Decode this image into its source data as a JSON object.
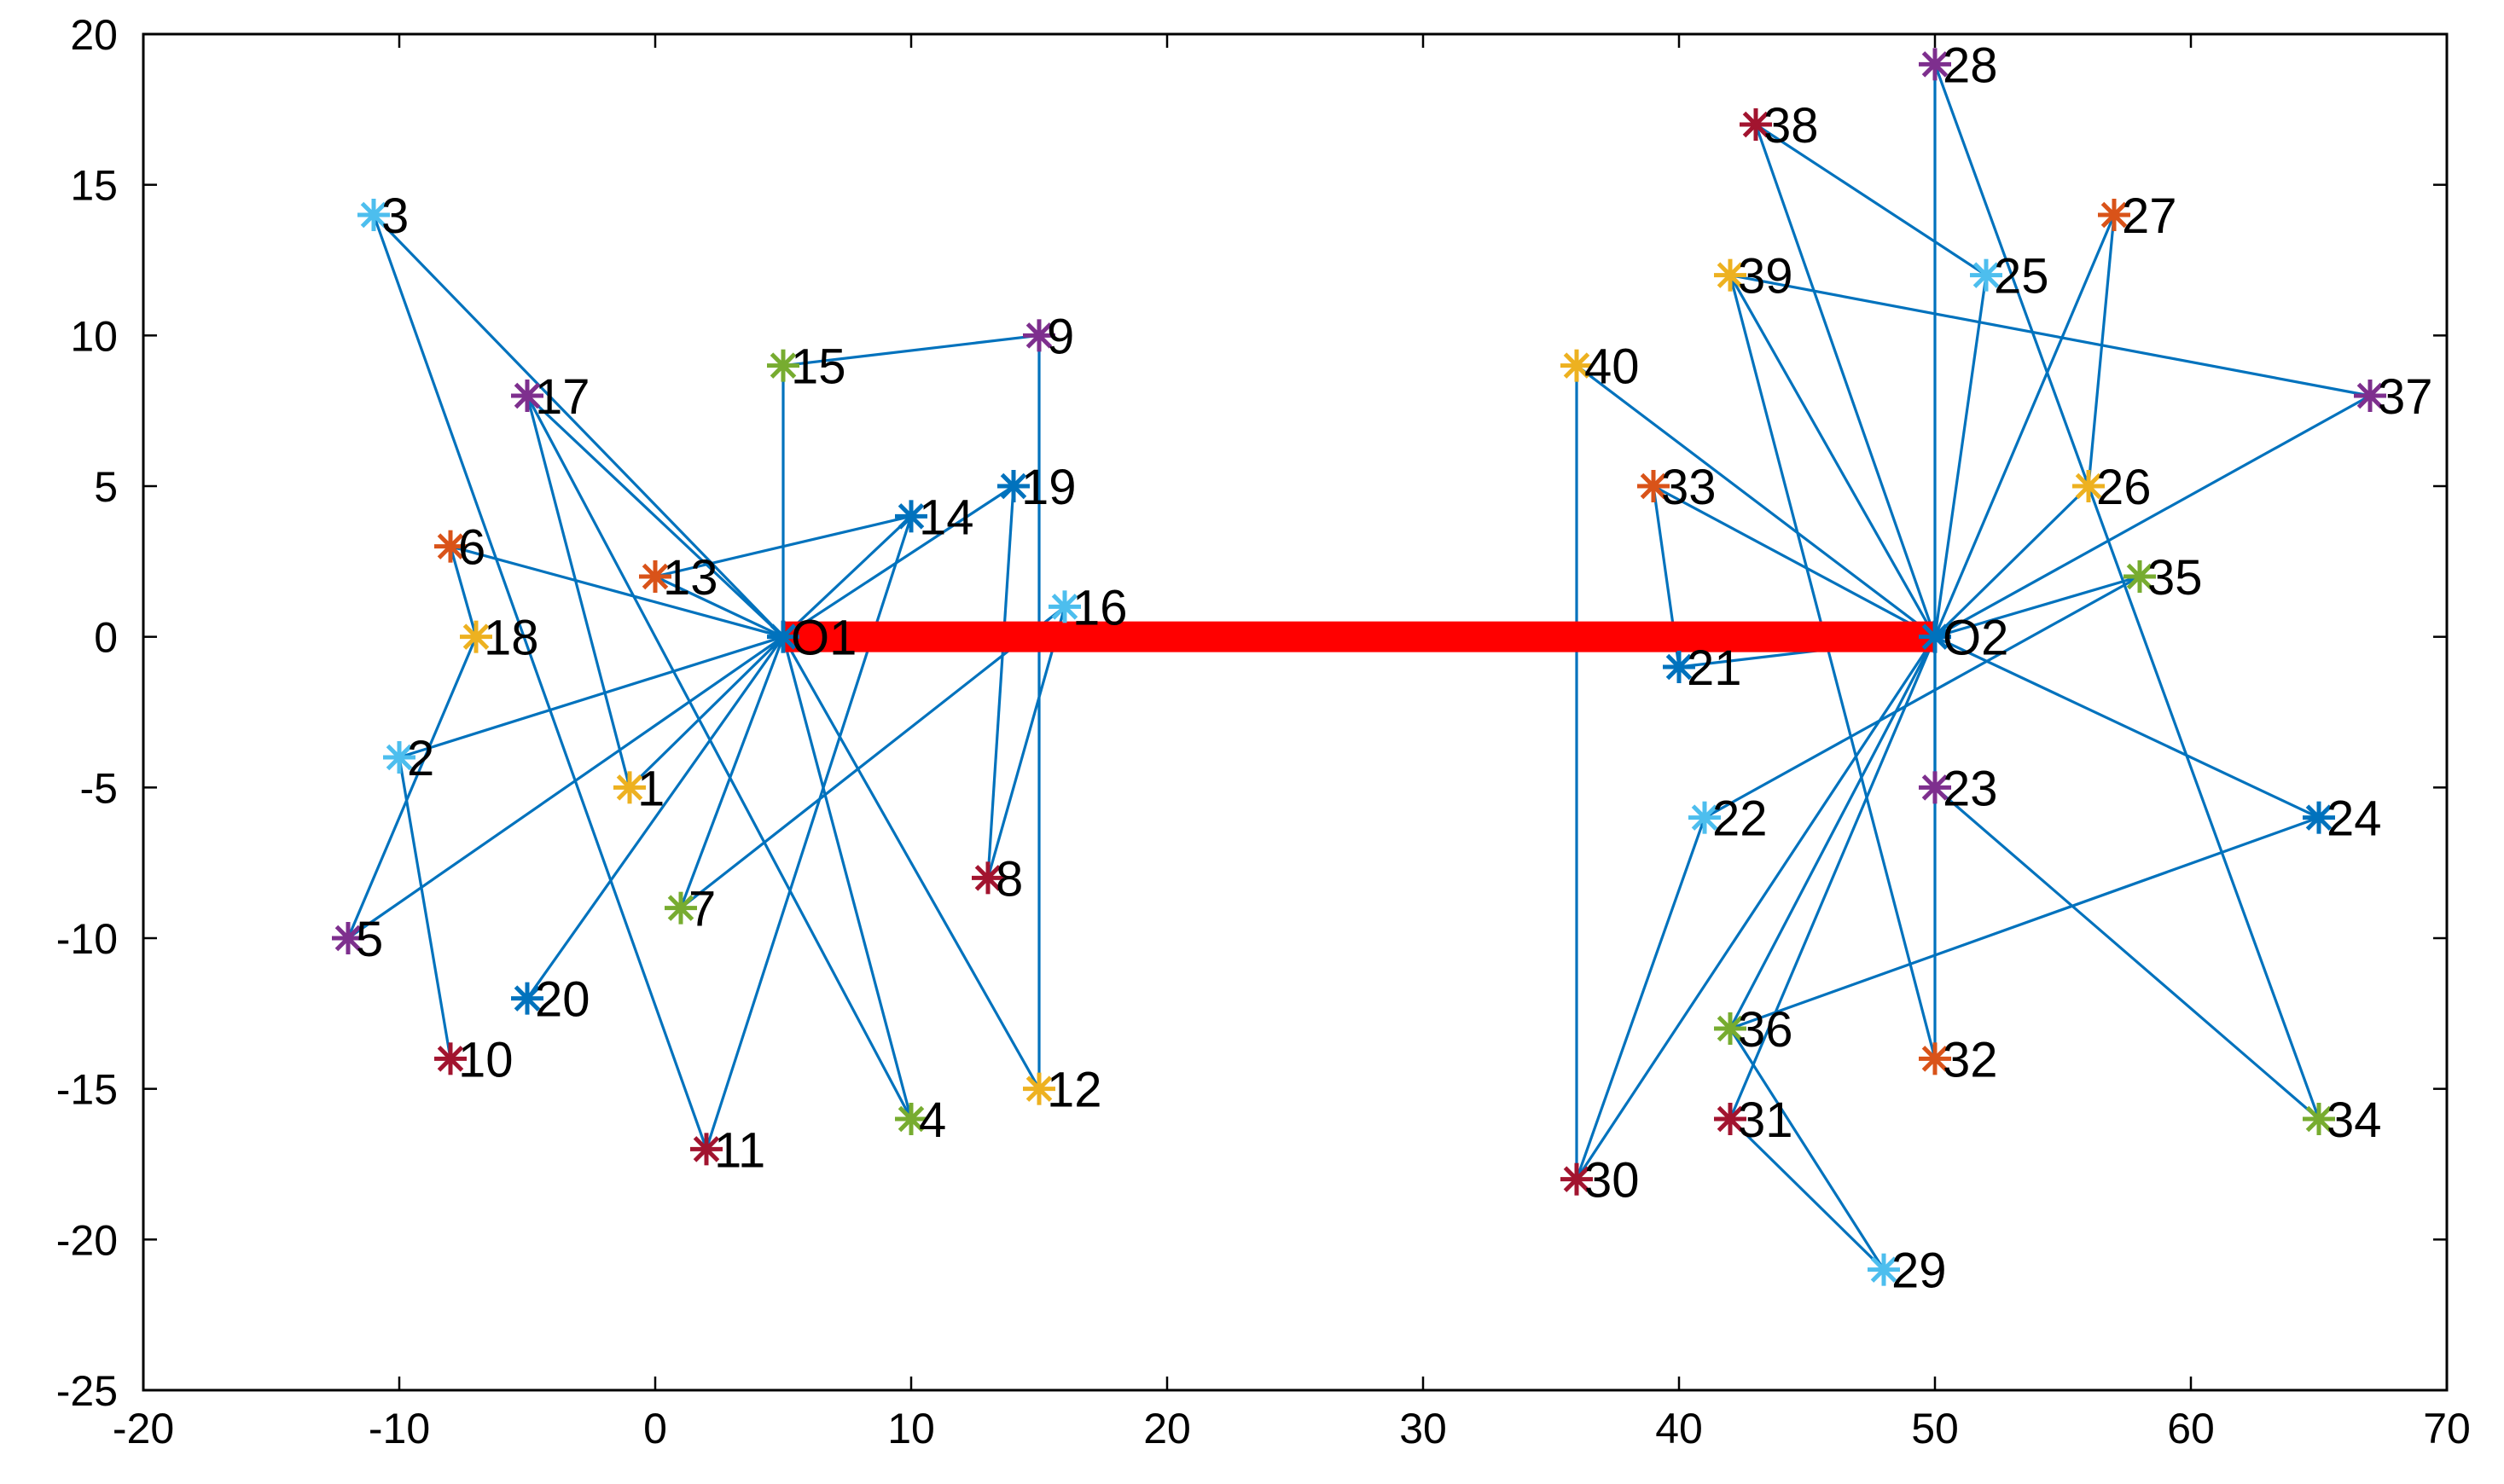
{
  "chart_data": {
    "type": "scatter",
    "title": "",
    "xlabel": "",
    "ylabel": "",
    "xlim": [
      -20,
      70
    ],
    "ylim": [
      -25,
      20
    ],
    "xticks": [
      -20,
      -10,
      0,
      10,
      20,
      30,
      40,
      50,
      60,
      70
    ],
    "yticks": [
      -25,
      -20,
      -15,
      -10,
      -5,
      0,
      5,
      10,
      15,
      20
    ],
    "xtick_labels": [
      "-20",
      "-10",
      "0",
      "10",
      "20",
      "30",
      "40",
      "50",
      "60",
      "70"
    ],
    "ytick_labels": [
      "-25",
      "-20",
      "-15",
      "-10",
      "-5",
      "0",
      "5",
      "10",
      "15",
      "20"
    ],
    "grid": false,
    "link_color": "#0072BD",
    "depot_link_color": "#FF0000",
    "depots": [
      {
        "id": "O1",
        "label": "O1",
        "x": 5,
        "y": 0
      },
      {
        "id": "O2",
        "label": "O2",
        "x": 50,
        "y": 0
      }
    ],
    "depot_link": [
      "O1",
      "O2"
    ],
    "points": [
      {
        "id": "1",
        "label": "1",
        "x": -1,
        "y": -5,
        "color": "#EDB120"
      },
      {
        "id": "2",
        "label": "2",
        "x": -10,
        "y": -4,
        "color": "#4DBEEE"
      },
      {
        "id": "3",
        "label": "3",
        "x": -11,
        "y": 14,
        "color": "#4DBEEE"
      },
      {
        "id": "4",
        "label": "4",
        "x": 10,
        "y": -16,
        "color": "#77AC30"
      },
      {
        "id": "5",
        "label": "5",
        "x": -12,
        "y": -10,
        "color": "#7E2F8E"
      },
      {
        "id": "6",
        "label": "6",
        "x": -8,
        "y": 3,
        "color": "#D95319"
      },
      {
        "id": "7",
        "label": "7",
        "x": 1,
        "y": -9,
        "color": "#77AC30"
      },
      {
        "id": "8",
        "label": "8",
        "x": 13,
        "y": -8,
        "color": "#A2142F"
      },
      {
        "id": "9",
        "label": "9",
        "x": 15,
        "y": 10,
        "color": "#7E2F8E"
      },
      {
        "id": "10",
        "label": "10",
        "x": -8,
        "y": -14,
        "color": "#A2142F"
      },
      {
        "id": "11",
        "label": "11",
        "x": 2,
        "y": -17,
        "color": "#A2142F"
      },
      {
        "id": "12",
        "label": "12",
        "x": 15,
        "y": -15,
        "color": "#EDB120"
      },
      {
        "id": "13",
        "label": "13",
        "x": 0,
        "y": 2,
        "color": "#D95319"
      },
      {
        "id": "14",
        "label": "14",
        "x": 10,
        "y": 4,
        "color": "#0072BD"
      },
      {
        "id": "15",
        "label": "15",
        "x": 5,
        "y": 9,
        "color": "#77AC30"
      },
      {
        "id": "16",
        "label": "16",
        "x": 16,
        "y": 1,
        "color": "#4DBEEE"
      },
      {
        "id": "17",
        "label": "17",
        "x": -5,
        "y": 8,
        "color": "#7E2F8E"
      },
      {
        "id": "18",
        "label": "18",
        "x": -7,
        "y": 0,
        "color": "#EDB120"
      },
      {
        "id": "19",
        "label": "19",
        "x": 14,
        "y": 5,
        "color": "#0072BD"
      },
      {
        "id": "20",
        "label": "20",
        "x": -5,
        "y": -12,
        "color": "#0072BD"
      },
      {
        "id": "21",
        "label": "21",
        "x": 40,
        "y": -1,
        "color": "#0072BD"
      },
      {
        "id": "22",
        "label": "22",
        "x": 41,
        "y": -6,
        "color": "#4DBEEE"
      },
      {
        "id": "23",
        "label": "23",
        "x": 50,
        "y": -5,
        "color": "#7E2F8E"
      },
      {
        "id": "24",
        "label": "24",
        "x": 65,
        "y": -6,
        "color": "#0072BD"
      },
      {
        "id": "25",
        "label": "25",
        "x": 52,
        "y": 12,
        "color": "#4DBEEE"
      },
      {
        "id": "26",
        "label": "26",
        "x": 56,
        "y": 5,
        "color": "#EDB120"
      },
      {
        "id": "27",
        "label": "27",
        "x": 57,
        "y": 14,
        "color": "#D95319"
      },
      {
        "id": "28",
        "label": "28",
        "x": 50,
        "y": 19,
        "color": "#7E2F8E"
      },
      {
        "id": "29",
        "label": "29",
        "x": 48,
        "y": -21,
        "color": "#4DBEEE"
      },
      {
        "id": "30",
        "label": "30",
        "x": 36,
        "y": -18,
        "color": "#A2142F"
      },
      {
        "id": "31",
        "label": "31",
        "x": 42,
        "y": -16,
        "color": "#A2142F"
      },
      {
        "id": "32",
        "label": "32",
        "x": 50,
        "y": -14,
        "color": "#D95319"
      },
      {
        "id": "33",
        "label": "33",
        "x": 39,
        "y": 5,
        "color": "#D95319"
      },
      {
        "id": "34",
        "label": "34",
        "x": 65,
        "y": -16,
        "color": "#77AC30"
      },
      {
        "id": "35",
        "label": "35",
        "x": 58,
        "y": 2,
        "color": "#77AC30"
      },
      {
        "id": "36",
        "label": "36",
        "x": 42,
        "y": -13,
        "color": "#77AC30"
      },
      {
        "id": "37",
        "label": "37",
        "x": 67,
        "y": 8,
        "color": "#7E2F8E"
      },
      {
        "id": "38",
        "label": "38",
        "x": 43,
        "y": 17,
        "color": "#A2142F"
      },
      {
        "id": "39",
        "label": "39",
        "x": 42,
        "y": 12,
        "color": "#EDB120"
      },
      {
        "id": "40",
        "label": "40",
        "x": 36,
        "y": 9,
        "color": "#EDB120"
      }
    ],
    "links": [
      [
        "O1",
        "3"
      ],
      [
        "3",
        "11"
      ],
      [
        "O1",
        "17"
      ],
      [
        "17",
        "1"
      ],
      [
        "17",
        "4"
      ],
      [
        "O1",
        "6"
      ],
      [
        "6",
        "18"
      ],
      [
        "18",
        "5"
      ],
      [
        "O1",
        "13"
      ],
      [
        "13",
        "14"
      ],
      [
        "14",
        "11"
      ],
      [
        "O1",
        "15"
      ],
      [
        "15",
        "9"
      ],
      [
        "9",
        "12"
      ],
      [
        "O1",
        "19"
      ],
      [
        "19",
        "8"
      ],
      [
        "8",
        "16"
      ],
      [
        "16",
        "7"
      ],
      [
        "O1",
        "2"
      ],
      [
        "2",
        "10"
      ],
      [
        "O1",
        "5"
      ],
      [
        "O1",
        "20"
      ],
      [
        "O1",
        "1"
      ],
      [
        "O1",
        "7"
      ],
      [
        "O1",
        "4"
      ],
      [
        "O1",
        "12"
      ],
      [
        "O1",
        "14"
      ],
      [
        "O2",
        "28"
      ],
      [
        "28",
        "34"
      ],
      [
        "O2",
        "38"
      ],
      [
        "38",
        "25"
      ],
      [
        "O2",
        "25"
      ],
      [
        "O2",
        "27"
      ],
      [
        "27",
        "26"
      ],
      [
        "26",
        "O2"
      ],
      [
        "O2",
        "39"
      ],
      [
        "39",
        "37"
      ],
      [
        "O2",
        "40"
      ],
      [
        "40",
        "30"
      ],
      [
        "O2",
        "33"
      ],
      [
        "33",
        "21"
      ],
      [
        "O2",
        "21"
      ],
      [
        "O2",
        "35"
      ],
      [
        "35",
        "22"
      ],
      [
        "22",
        "30"
      ],
      [
        "O2",
        "30"
      ],
      [
        "O2",
        "36"
      ],
      [
        "36",
        "24"
      ],
      [
        "O2",
        "24"
      ],
      [
        "O2",
        "23"
      ],
      [
        "23",
        "34"
      ],
      [
        "O2",
        "32"
      ],
      [
        "32",
        "39"
      ],
      [
        "O2",
        "31"
      ],
      [
        "31",
        "29"
      ],
      [
        "29",
        "36"
      ],
      [
        "O2",
        "37"
      ]
    ]
  }
}
